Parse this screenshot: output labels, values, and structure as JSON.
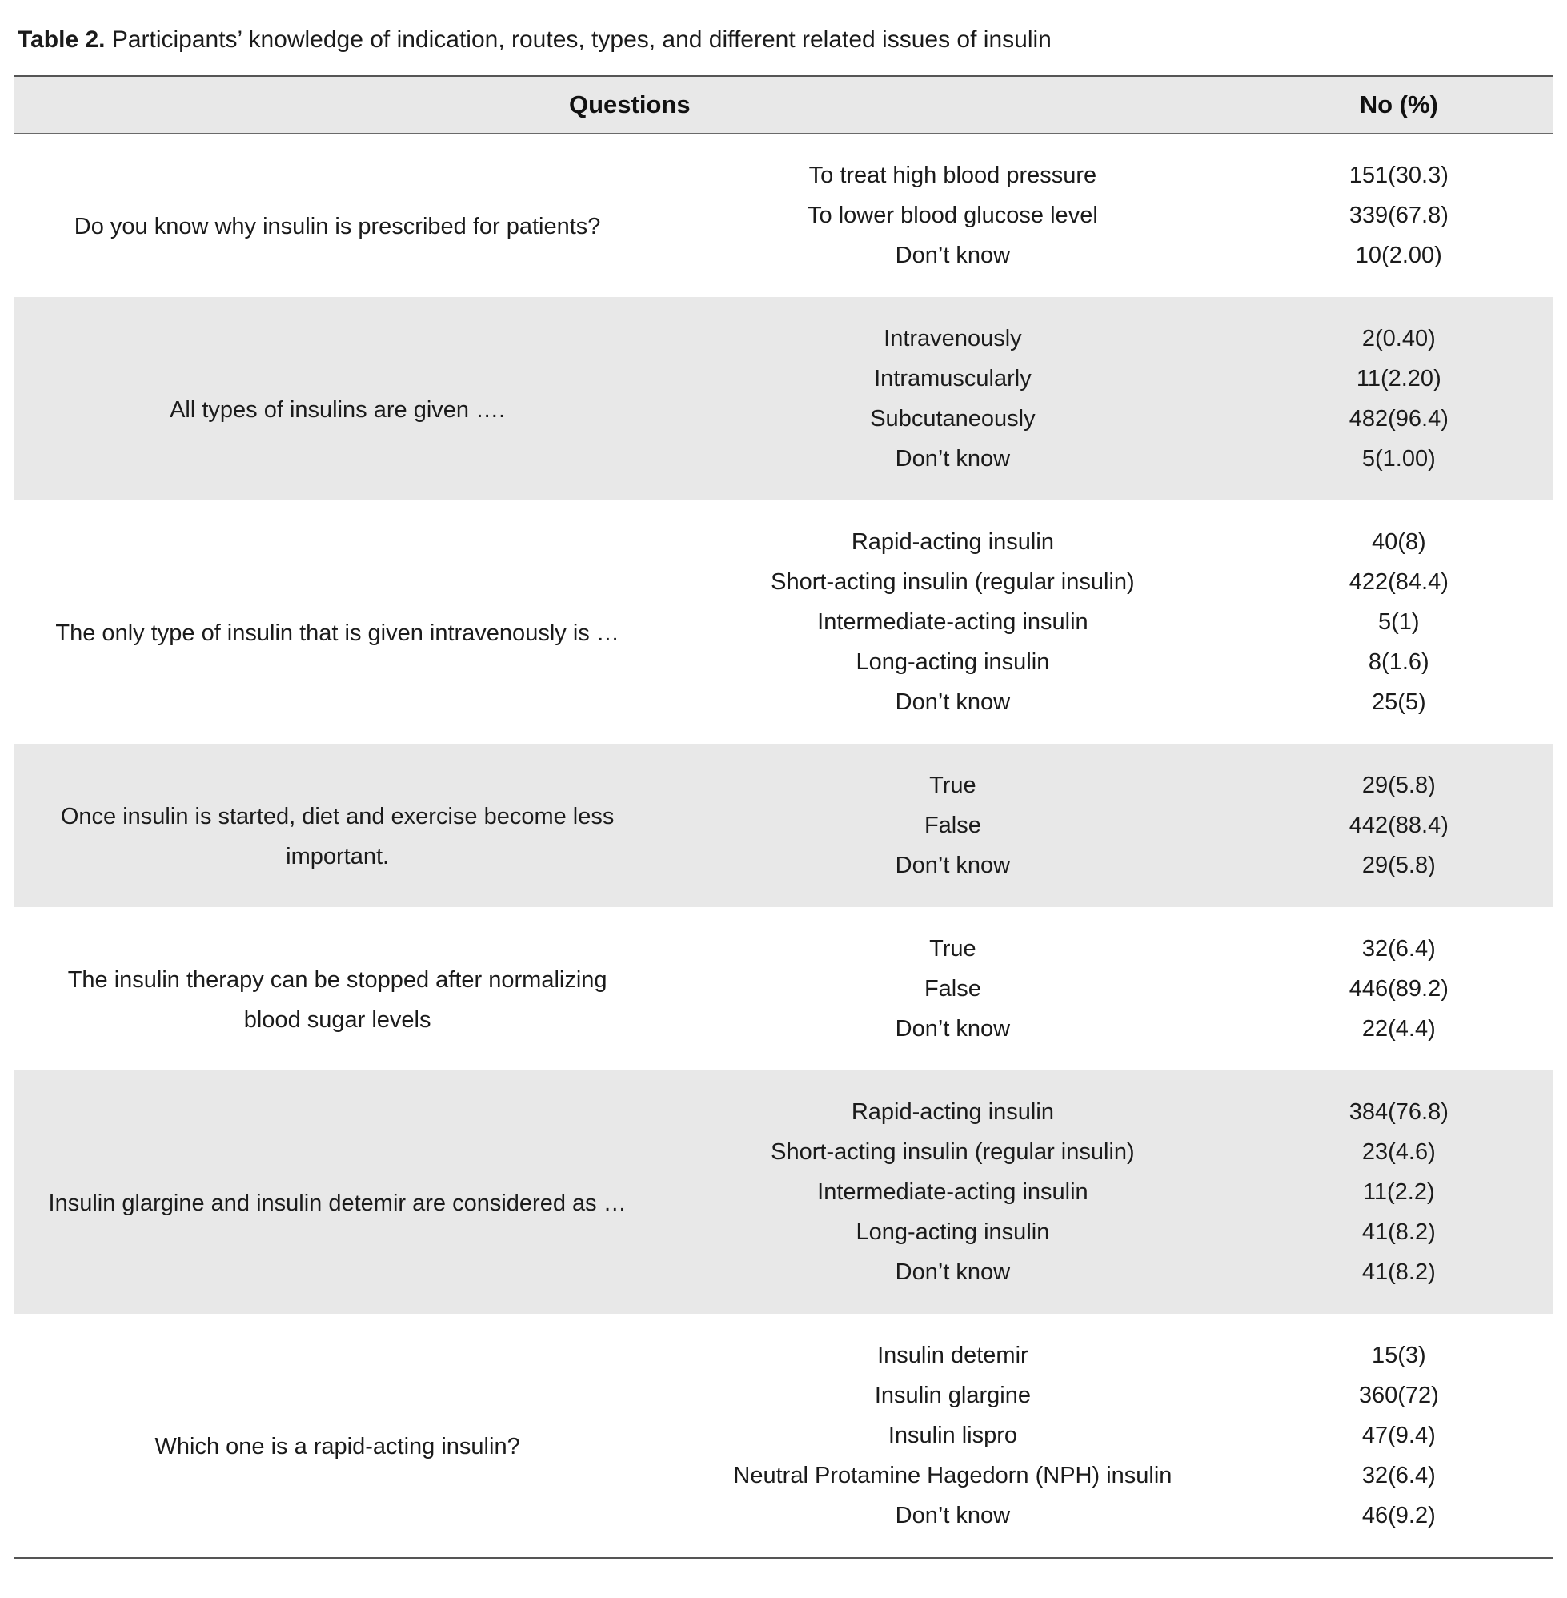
{
  "caption": {
    "label": "Table 2.",
    "text": " Participants’ knowledge of indication, routes, types, and different related issues of insulin"
  },
  "header": {
    "questions": "Questions",
    "count": "No (%)"
  },
  "colors": {
    "stripe": "#e8e8e8",
    "rule": "#555555"
  },
  "groups": [
    {
      "question": "Do you know why insulin is prescribed for patients?",
      "shaded": false,
      "options": [
        {
          "label": "To treat high blood pressure",
          "value": "151(30.3)"
        },
        {
          "label": "To lower blood glucose level",
          "value": "339(67.8)"
        },
        {
          "label": "Don’t know",
          "value": "10(2.00)"
        }
      ]
    },
    {
      "question": "All types of insulins are given ….",
      "shaded": true,
      "options": [
        {
          "label": "Intravenously",
          "value": "2(0.40)"
        },
        {
          "label": "Intramuscularly",
          "value": "11(2.20)"
        },
        {
          "label": "Subcutaneously",
          "value": "482(96.4)"
        },
        {
          "label": "Don’t know",
          "value": "5(1.00)"
        }
      ]
    },
    {
      "question": "The only type of insulin that is given intravenously is …",
      "shaded": false,
      "options": [
        {
          "label": "Rapid-acting insulin",
          "value": "40(8)"
        },
        {
          "label": "Short-acting insulin (regular insulin)",
          "value": "422(84.4)"
        },
        {
          "label": "Intermediate-acting insulin",
          "value": "5(1)"
        },
        {
          "label": "Long-acting insulin",
          "value": "8(1.6)"
        },
        {
          "label": "Don’t know",
          "value": "25(5)"
        }
      ]
    },
    {
      "question": "Once insulin is started, diet and exercise become less important.",
      "shaded": true,
      "options": [
        {
          "label": "True",
          "value": "29(5.8)"
        },
        {
          "label": "False",
          "value": "442(88.4)"
        },
        {
          "label": "Don’t know",
          "value": "29(5.8)"
        }
      ]
    },
    {
      "question": "The insulin therapy can be stopped after normalizing blood sugar levels",
      "shaded": false,
      "options": [
        {
          "label": "True",
          "value": "32(6.4)"
        },
        {
          "label": "False",
          "value": "446(89.2)"
        },
        {
          "label": "Don’t know",
          "value": "22(4.4)"
        }
      ]
    },
    {
      "question": "Insulin glargine and insulin detemir are considered as …",
      "shaded": true,
      "options": [
        {
          "label": "Rapid-acting insulin",
          "value": "384(76.8)"
        },
        {
          "label": "Short-acting insulin (regular insulin)",
          "value": "23(4.6)"
        },
        {
          "label": "Intermediate-acting insulin",
          "value": "11(2.2)"
        },
        {
          "label": "Long-acting insulin",
          "value": "41(8.2)"
        },
        {
          "label": "Don’t know",
          "value": "41(8.2)"
        }
      ]
    },
    {
      "question": "Which one is a rapid-acting insulin?",
      "shaded": false,
      "options": [
        {
          "label": "Insulin detemir",
          "value": "15(3)"
        },
        {
          "label": "Insulin glargine",
          "value": "360(72)"
        },
        {
          "label": "Insulin lispro",
          "value": "47(9.4)"
        },
        {
          "label": "Neutral Protamine Hagedorn (NPH) insulin",
          "value": "32(6.4)"
        },
        {
          "label": "Don’t know",
          "value": "46(9.2)"
        }
      ]
    }
  ]
}
